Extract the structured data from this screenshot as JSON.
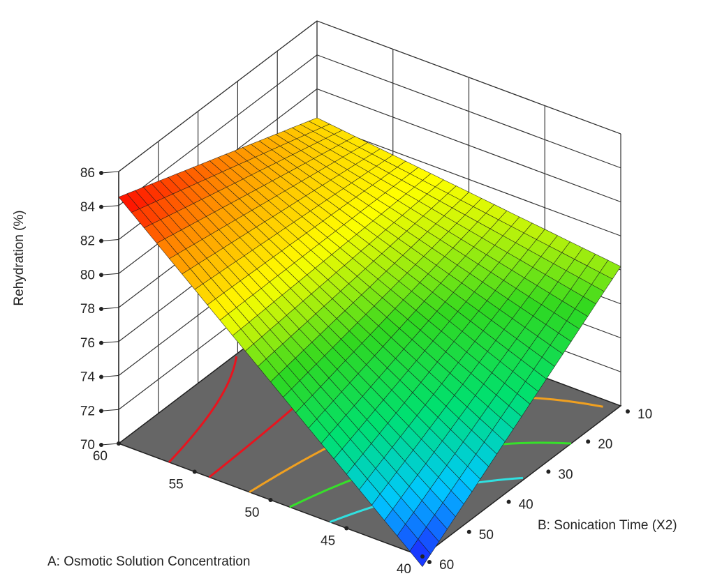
{
  "chart_data": {
    "type": "surface",
    "title": "",
    "xlabel": "A: Osmotic Solution Concentration",
    "ylabel": "B: Sonication Time (X2)",
    "zlabel": "Rehydration (%)",
    "x_ticks": [
      "40",
      "45",
      "50",
      "55",
      "60"
    ],
    "y_ticks": [
      "10",
      "20",
      "30",
      "40",
      "50",
      "60"
    ],
    "z_ticks": [
      "70",
      "72",
      "74",
      "76",
      "78",
      "80",
      "82",
      "84",
      "86"
    ],
    "xlim": [
      40,
      60
    ],
    "ylim": [
      10,
      60
    ],
    "zlim": [
      70,
      86
    ],
    "grid": true,
    "surface_corners": {
      "A60_B10": 80.3,
      "A40_B10": 78.2,
      "A60_B60": 84.5,
      "A40_B60": 69.4
    },
    "floor_contours": [
      {
        "level": 82,
        "color": "#e8141e"
      },
      {
        "level": 80,
        "color": "#e8141e"
      },
      {
        "level": 78,
        "color": "#f0a020"
      },
      {
        "level": 76,
        "color": "#36e02a"
      },
      {
        "level": 74,
        "color": "#30e0e0"
      }
    ],
    "colors": {
      "floor": "#666666",
      "grid": "#333333",
      "mesh": "#1a1a1a",
      "colormap": [
        "#1f17ff",
        "#00c8ff",
        "#00e070",
        "#30d820",
        "#ffff00",
        "#ff9000",
        "#ff0000"
      ]
    }
  }
}
